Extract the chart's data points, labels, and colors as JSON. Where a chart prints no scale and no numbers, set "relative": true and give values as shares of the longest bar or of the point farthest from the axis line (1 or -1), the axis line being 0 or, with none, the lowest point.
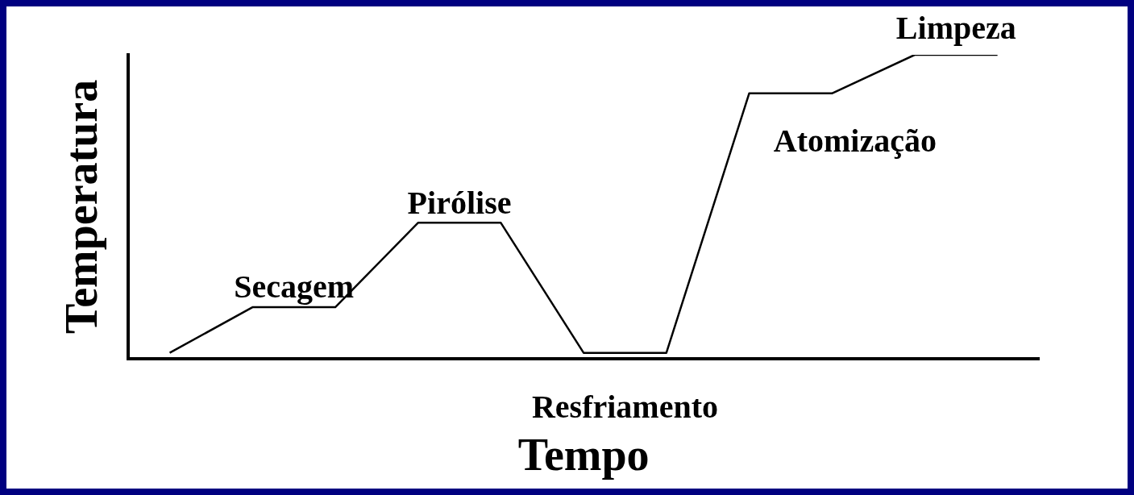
{
  "chart_data": {
    "type": "line",
    "xlabel": "Tempo",
    "ylabel": "Temperatura",
    "relative": true,
    "legend": false,
    "marker": "none",
    "line_style": "solid",
    "categories": [
      null,
      null,
      null,
      null,
      null,
      null,
      null,
      null,
      null,
      null,
      null
    ],
    "series": [
      {
        "color": "#000000",
        "values": [
          0.019,
          0.169,
          0.169,
          0.447,
          0.447,
          0.019,
          0.019,
          0.873,
          0.873,
          1,
          1
        ]
      }
    ],
    "annotations": [
      "Secagem",
      "Pirólise",
      "Resfriamento",
      "Atomização",
      "Limpeza"
    ]
  }
}
